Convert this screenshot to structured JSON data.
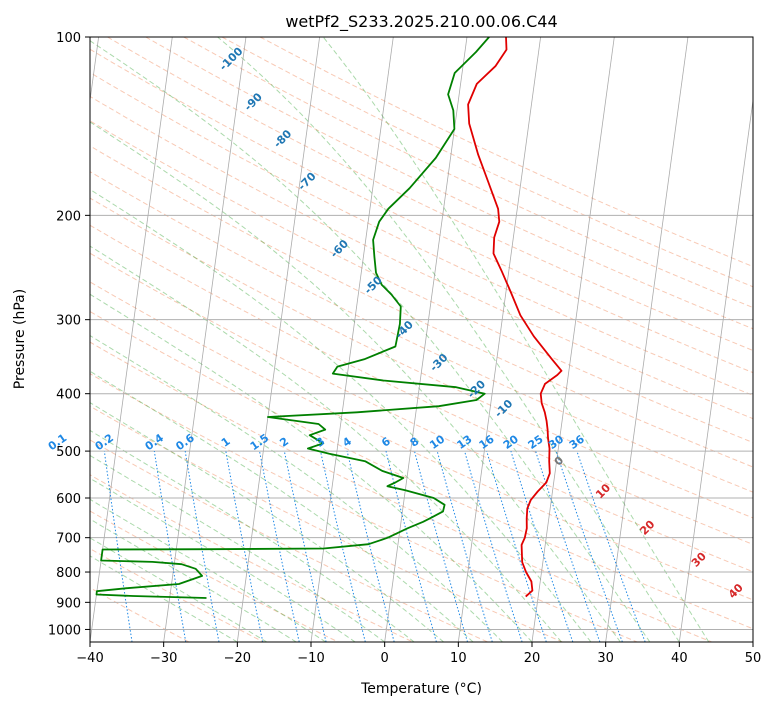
{
  "chart_data": {
    "type": "line",
    "chart_kind": "skew-T log-P sounding",
    "title": "wetPf2_S233.2025.210.00.06.C44",
    "xlabel": "Temperature (°C)",
    "ylabel": "Pressure (hPa)",
    "xlim": [
      -40,
      50
    ],
    "ylim": [
      1050,
      100
    ],
    "y_scale": "log",
    "grid": true,
    "x_ticks": [
      -40,
      -30,
      -20,
      -10,
      0,
      10,
      20,
      30,
      40,
      50
    ],
    "y_ticks": [
      100,
      200,
      300,
      400,
      500,
      600,
      700,
      800,
      900,
      1000
    ],
    "colors": {
      "temperature": "#e00000",
      "dewpoint": "#008000",
      "dry_adiabats": "#f4a582",
      "moist_adiabats": "#2ca02c",
      "mixing_ratio": "#1e88e5",
      "isotherms": "#888888",
      "dry_adiabat_labels": "#d62728",
      "moist_adiabat_labels": "#1f77b4"
    },
    "series": [
      {
        "name": "Temperature",
        "points": [
          [
            18.3,
            880
          ],
          [
            19.1,
            860
          ],
          [
            18.8,
            830
          ],
          [
            17.9,
            800
          ],
          [
            17.2,
            770
          ],
          [
            17.0,
            745
          ],
          [
            16.8,
            720
          ],
          [
            17.1,
            700
          ],
          [
            17.2,
            675
          ],
          [
            17.0,
            650
          ],
          [
            16.9,
            625
          ],
          [
            17.2,
            605
          ],
          [
            18.0,
            585
          ],
          [
            19.0,
            565
          ],
          [
            19.3,
            545
          ],
          [
            19.0,
            520
          ],
          [
            18.8,
            495
          ],
          [
            18.4,
            475
          ],
          [
            18.2,
            460
          ],
          [
            17.9,
            445
          ],
          [
            17.5,
            430
          ],
          [
            16.9,
            415
          ],
          [
            16.6,
            400
          ],
          [
            17.0,
            385
          ],
          [
            18.5,
            372
          ],
          [
            19.0,
            366
          ],
          [
            17.5,
            350
          ],
          [
            14.6,
            320
          ],
          [
            12.4,
            295
          ],
          [
            10.7,
            270
          ],
          [
            9.0,
            248
          ],
          [
            7.6,
            232
          ],
          [
            7.4,
            218
          ],
          [
            7.8,
            205
          ],
          [
            7.4,
            195
          ],
          [
            5.5,
            175
          ],
          [
            3.7,
            158
          ],
          [
            1.9,
            140
          ],
          [
            1.4,
            130
          ],
          [
            2.2,
            120
          ],
          [
            4.4,
            112
          ],
          [
            5.6,
            105
          ],
          [
            5.3,
            100
          ]
        ]
      },
      {
        "name": "Dewpoint",
        "points": [
          [
            -25.0,
            885
          ],
          [
            -35.0,
            878
          ],
          [
            -40.0,
            873
          ],
          [
            -40.0,
            862
          ],
          [
            -36.0,
            852
          ],
          [
            -29.0,
            838
          ],
          [
            -26.0,
            812
          ],
          [
            -27.0,
            790
          ],
          [
            -29.0,
            776
          ],
          [
            -33.0,
            769
          ],
          [
            -40.0,
            765
          ],
          [
            -40.0,
            733
          ],
          [
            -25.0,
            732
          ],
          [
            -10.0,
            730
          ],
          [
            -4.0,
            718
          ],
          [
            -1.5,
            700
          ],
          [
            1.0,
            675
          ],
          [
            3.0,
            658
          ],
          [
            4.0,
            648
          ],
          [
            5.5,
            632
          ],
          [
            5.6,
            616
          ],
          [
            4.0,
            600
          ],
          [
            0.0,
            582
          ],
          [
            -2.5,
            573
          ],
          [
            -1.5,
            565
          ],
          [
            -0.5,
            555
          ],
          [
            -3.5,
            540
          ],
          [
            -6.0,
            520
          ],
          [
            -11.0,
            505
          ],
          [
            -14.0,
            495
          ],
          [
            -12.0,
            485
          ],
          [
            -14.0,
            470
          ],
          [
            -12.0,
            460
          ],
          [
            -13.0,
            450
          ],
          [
            -20.0,
            438
          ],
          [
            -8.0,
            430
          ],
          [
            3.0,
            420
          ],
          [
            8.0,
            410
          ],
          [
            9.0,
            400
          ],
          [
            5.0,
            390
          ],
          [
            -5.0,
            380
          ],
          [
            -12.0,
            370
          ],
          [
            -11.5,
            360
          ],
          [
            -8.0,
            350
          ],
          [
            -4.0,
            333
          ],
          [
            -3.8,
            305
          ],
          [
            -4.0,
            285
          ],
          [
            -5.5,
            272
          ],
          [
            -7.0,
            262
          ],
          [
            -8.0,
            250
          ],
          [
            -8.5,
            235
          ],
          [
            -9.0,
            220
          ],
          [
            -8.5,
            205
          ],
          [
            -7.5,
            195
          ],
          [
            -5.0,
            180
          ],
          [
            -2.0,
            160
          ],
          [
            0.0,
            143
          ],
          [
            -0.5,
            133
          ],
          [
            -1.5,
            125
          ],
          [
            -1.0,
            115
          ],
          [
            1.5,
            106
          ],
          [
            3.0,
            100
          ]
        ]
      }
    ],
    "dry_adiabat_labels": [
      "0",
      "10",
      "20",
      "30",
      "40"
    ],
    "moist_adiabat_labels": [
      "-100",
      "-90",
      "-80",
      "-70",
      "-60",
      "-50",
      "-40",
      "-30",
      "-20",
      "-10"
    ],
    "mixing_ratio_labels": [
      "0.1",
      "0.2",
      "0.4",
      "0.6",
      "1",
      "1.5",
      "2",
      "3",
      "4",
      "6",
      "8",
      "10",
      "13",
      "16",
      "20",
      "25",
      "30",
      "36"
    ]
  }
}
